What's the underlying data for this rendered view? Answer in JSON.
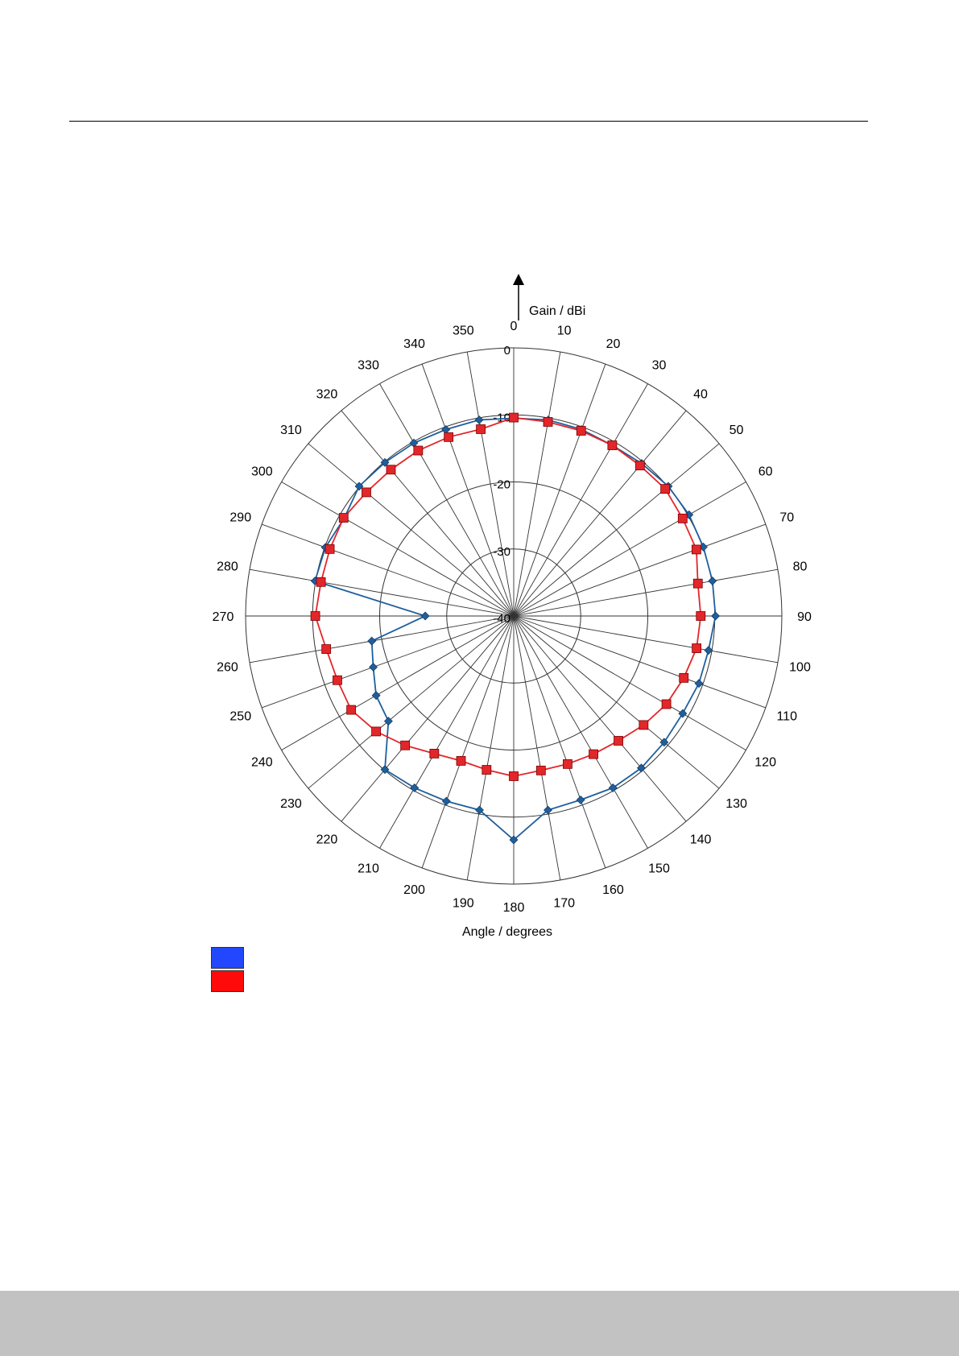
{
  "page": {
    "footer_color": "#c2c2c2"
  },
  "chart_data": {
    "type": "polar-line",
    "axis_labels": {
      "radial": "Gain / dBi",
      "angular": "Angle / degrees"
    },
    "radial_range": [
      -40,
      0
    ],
    "radial_ticks": [
      0,
      -10,
      -20,
      -30,
      -40
    ],
    "radial_tick_labels": [
      "0",
      "-10",
      "-20",
      "-30",
      "-40"
    ],
    "angle_ticks": [
      0,
      10,
      20,
      30,
      40,
      50,
      60,
      70,
      80,
      90,
      100,
      110,
      120,
      130,
      140,
      150,
      160,
      170,
      180,
      190,
      200,
      210,
      220,
      230,
      240,
      250,
      260,
      270,
      280,
      290,
      300,
      310,
      320,
      330,
      340,
      350
    ],
    "angle_tick_labels": [
      "0",
      "10",
      "20",
      "30",
      "40",
      "50",
      "60",
      "70",
      "80",
      "90",
      "100",
      "110",
      "120",
      "130",
      "140",
      "150",
      "160",
      "170",
      "180",
      "190",
      "200",
      "210",
      "220",
      "230",
      "240",
      "250",
      "260",
      "270",
      "280",
      "290",
      "300",
      "310",
      "320",
      "330",
      "340",
      "350"
    ],
    "grid": true,
    "legend_placement": "bottom-left",
    "series": [
      {
        "color": "#1f5f9c",
        "legend_color": "#2347ff",
        "marker": "diamond",
        "angles": [
          0,
          10,
          20,
          30,
          40,
          50,
          60,
          70,
          80,
          90,
          100,
          110,
          120,
          130,
          140,
          150,
          160,
          170,
          180,
          190,
          200,
          210,
          220,
          230,
          240,
          250,
          260,
          270,
          280,
          290,
          300,
          310,
          320,
          330,
          340,
          350
        ],
        "values": [
          -10.5,
          -10.3,
          -10.4,
          -10.6,
          -10.3,
          -9.9,
          -9.8,
          -9.9,
          -9.9,
          -9.9,
          -10.5,
          -10.6,
          -10.9,
          -10.7,
          -10.4,
          -10.4,
          -10.8,
          -10.6,
          -6.6,
          -10.6,
          -10.6,
          -10.4,
          -10.1,
          -15.6,
          -16.3,
          -17.7,
          -18.5,
          -26.8,
          -9.9,
          -10.1,
          -10.8,
          -9.9,
          -10.1,
          -10.2,
          -10.4,
          -10.3
        ]
      },
      {
        "color": "#e3262a",
        "legend_color": "#ff0a0a",
        "marker": "square",
        "angles": [
          0,
          10,
          20,
          30,
          40,
          50,
          60,
          70,
          80,
          90,
          100,
          110,
          120,
          130,
          140,
          150,
          160,
          170,
          180,
          190,
          200,
          210,
          220,
          230,
          240,
          250,
          260,
          270,
          280,
          290,
          300,
          310,
          320,
          330,
          340,
          350
        ],
        "values": [
          -10.4,
          -10.6,
          -10.6,
          -10.6,
          -10.7,
          -10.5,
          -10.9,
          -11.0,
          -12.1,
          -12.1,
          -12.3,
          -13.0,
          -13.7,
          -14.7,
          -15.7,
          -16.2,
          -16.5,
          -16.6,
          -16.1,
          -16.7,
          -17.0,
          -16.3,
          -14.8,
          -13.2,
          -12.0,
          -12.0,
          -11.6,
          -10.4,
          -10.8,
          -10.8,
          -10.7,
          -11.3,
          -11.5,
          -11.5,
          -11.6,
          -11.7
        ]
      }
    ]
  }
}
